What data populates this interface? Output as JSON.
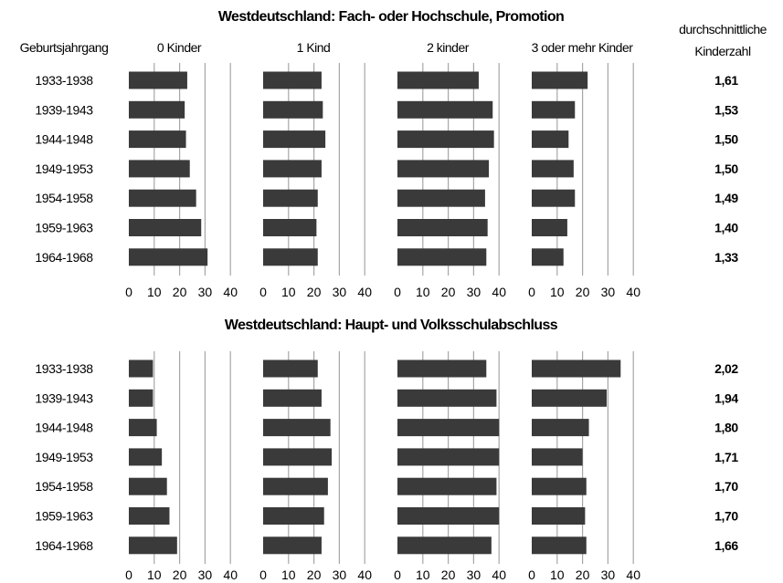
{
  "headers": {
    "cohort_label": "Geburtsjahrgang",
    "kinderzahl_line1": "durchschnittliche",
    "kinderzahl_line2": "Kinderzahl"
  },
  "chart_data": [
    {
      "type": "bar",
      "orientation": "horizontal",
      "title": "Westdeutschland: Fach- oder Hochschule, Promotion",
      "categories": [
        "1933-1938",
        "1939-1943",
        "1944-1948",
        "1949-1953",
        "1954-1958",
        "1959-1963",
        "1964-1968"
      ],
      "xlim": [
        0,
        40
      ],
      "xticks": [
        0,
        10,
        20,
        30,
        40
      ],
      "grid": true,
      "series": [
        {
          "name": "0 Kinder",
          "values": [
            23,
            22,
            22.5,
            24,
            26.5,
            28.5,
            31
          ]
        },
        {
          "name": "1 Kind",
          "values": [
            23,
            23.5,
            24.5,
            23,
            21.5,
            21,
            21.5
          ]
        },
        {
          "name": "2 kinder",
          "values": [
            32,
            37.5,
            38,
            36,
            34.5,
            35.5,
            35
          ]
        },
        {
          "name": "3 oder mehr Kinder",
          "values": [
            22,
            17,
            14.5,
            16.5,
            17,
            14,
            12.5
          ]
        }
      ],
      "avg_children": [
        "1,61",
        "1,53",
        "1,50",
        "1,50",
        "1,49",
        "1,40",
        "1,33"
      ]
    },
    {
      "type": "bar",
      "orientation": "horizontal",
      "title": "Westdeutschland: Haupt- und Volksschulabschluss",
      "categories": [
        "1933-1938",
        "1939-1943",
        "1944-1948",
        "1949-1953",
        "1954-1958",
        "1959-1963",
        "1964-1968"
      ],
      "xlim": [
        0,
        40
      ],
      "xticks": [
        0,
        10,
        20,
        30,
        40
      ],
      "grid": true,
      "series": [
        {
          "name": "0 Kinder",
          "values": [
            9.5,
            9.5,
            11,
            13,
            15,
            16,
            19
          ]
        },
        {
          "name": "1 Kind",
          "values": [
            21.5,
            23,
            26.5,
            27,
            25.5,
            24,
            23
          ]
        },
        {
          "name": "2 kinder",
          "values": [
            35,
            39,
            40,
            40,
            39,
            40,
            37
          ]
        },
        {
          "name": "3 oder mehr Kinder",
          "values": [
            35,
            29.5,
            22.5,
            20,
            21.5,
            21,
            21.5
          ]
        }
      ],
      "avg_children": [
        "2,02",
        "1,94",
        "1,80",
        "1,71",
        "1,70",
        "1,70",
        "1,66"
      ]
    }
  ],
  "colors": {
    "bar": "#3a3a3a",
    "grid": "#a6a6a6",
    "text": "#000000"
  }
}
